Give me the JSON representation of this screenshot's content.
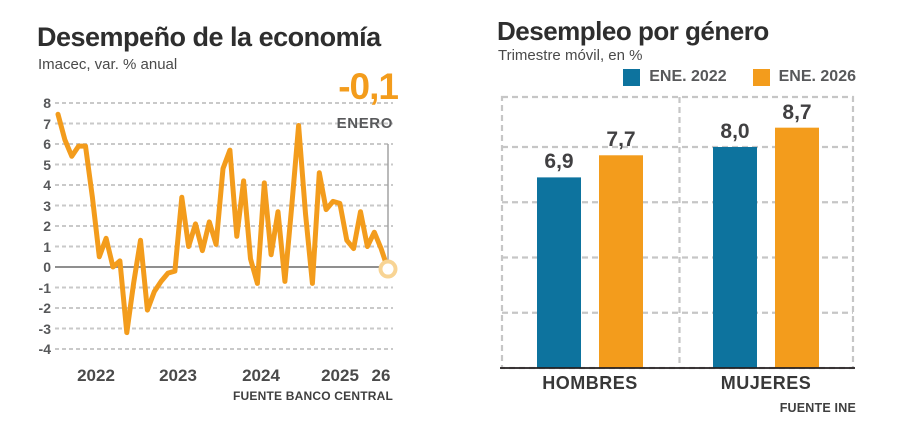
{
  "colors": {
    "accent_orange": "#f39c1c",
    "accent_blue": "#0d739e",
    "title_text": "#2e2e2e",
    "muted_text": "#4a4a4a",
    "grid_gray": "#c9c9c9",
    "zero_line_gray": "#8f8f8f",
    "axis_black": "#231f20",
    "dot_halo": "#f8d494"
  },
  "chart_data": [
    {
      "type": "line",
      "title": "Desempeño de la economía",
      "subtitle": "Imacec, var. % anual",
      "source": "FUENTE BANCO CENTRAL",
      "line_color": "#f39c1c",
      "frequency": "monthly",
      "x_start": "2022-01",
      "x_end": "2026-01",
      "values": [
        7.45,
        6.2,
        5.4,
        5.9,
        5.9,
        3.4,
        0.5,
        1.4,
        0.0,
        0.3,
        -3.2,
        -0.8,
        1.3,
        -2.1,
        -1.2,
        -0.7,
        -0.3,
        -0.2,
        3.4,
        1.0,
        2.1,
        0.8,
        2.2,
        1.1,
        4.8,
        5.7,
        1.5,
        4.2,
        0.4,
        -0.8,
        4.1,
        0.6,
        2.7,
        -0.7,
        3.0,
        6.9,
        2.6,
        -0.8,
        4.6,
        2.8,
        3.2,
        3.1,
        1.3,
        0.9,
        2.7,
        1.0,
        1.7,
        0.9,
        -0.1
      ],
      "ylim": [
        -4,
        8
      ],
      "yticks": [
        8,
        7,
        6,
        5,
        4,
        3,
        2,
        1,
        0,
        -1,
        -2,
        -3,
        -4
      ],
      "grid": "horizontal dashed, solid zero line",
      "year_labels": [
        {
          "label": "2022",
          "m": 5.5
        },
        {
          "label": "2023",
          "m": 17.5
        },
        {
          "label": "2024",
          "m": 29.5
        },
        {
          "label": "2025",
          "m": 41
        },
        {
          "label": "26",
          "m": 47
        }
      ],
      "end_point": {
        "value": -0.1,
        "value_label": "-0,1",
        "sub_label": "ENERO"
      }
    },
    {
      "type": "bar",
      "title": "Desempleo por género",
      "subtitle": "Trimestre móvil, en %",
      "source": "FUENTE INE",
      "categories": [
        "HOMBRES",
        "MUJERES"
      ],
      "series": [
        {
          "name": "ENE. 2022",
          "color": "#0d739e",
          "values": [
            6.9,
            8.0
          ],
          "value_labels": [
            "6,9",
            "8,0"
          ]
        },
        {
          "name": "ENE. 2026",
          "color": "#f39c1c",
          "values": [
            7.7,
            8.7
          ],
          "value_labels": [
            "7,7",
            "8,7"
          ]
        }
      ],
      "ylim": [
        0,
        10
      ],
      "gridline_values": [
        2,
        4,
        6,
        8
      ],
      "legend_position": "top-right",
      "grid": "dashed frame, dashed gridlines, dashed group divider"
    }
  ]
}
